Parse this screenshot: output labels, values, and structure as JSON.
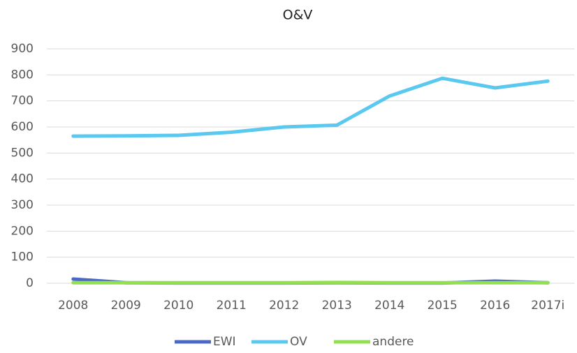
{
  "chart_data": {
    "type": "line",
    "title": "O&V",
    "categories": [
      "2008",
      "2009",
      "2010",
      "2011",
      "2012",
      "2013",
      "2014",
      "2015",
      "2016",
      "2017i"
    ],
    "series": [
      {
        "name": "EWI",
        "color": "#4a68c8",
        "values": [
          16,
          2,
          1,
          1,
          1,
          2,
          1,
          1,
          8,
          2
        ]
      },
      {
        "name": "OV",
        "color": "#5bc8f0",
        "values": [
          565,
          566,
          568,
          580,
          600,
          607,
          719,
          787,
          750,
          776
        ]
      },
      {
        "name": "andere",
        "color": "#92e050",
        "values": [
          2,
          2,
          2,
          2,
          2,
          3,
          2,
          2,
          2,
          2
        ]
      }
    ],
    "ylim": [
      0,
      900
    ],
    "yticks": [
      0,
      100,
      200,
      300,
      400,
      500,
      600,
      700,
      800,
      900
    ],
    "grid": true,
    "legend": "bottom"
  }
}
